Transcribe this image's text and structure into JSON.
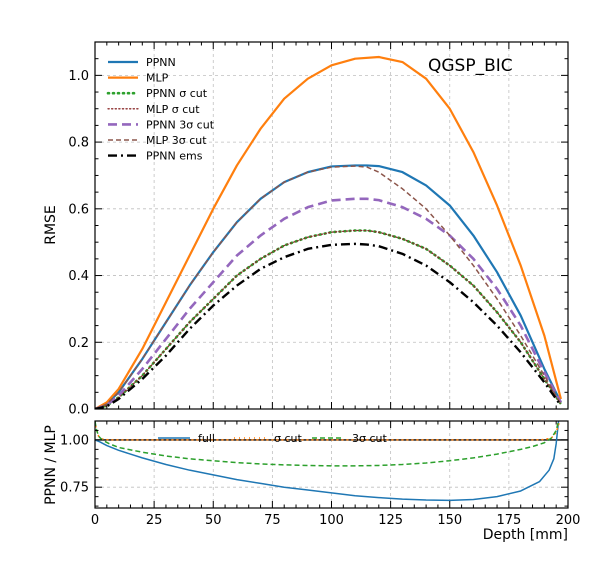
{
  "chart_data": [
    {
      "type": "line",
      "title": "",
      "annotation": "QGSP_BIC",
      "xlabel": "",
      "ylabel": "RMSE",
      "xlim": [
        0,
        200
      ],
      "ylim": [
        0,
        1.1
      ],
      "xticks": [
        0,
        25,
        50,
        75,
        100,
        125,
        150,
        175,
        200
      ],
      "yticks": [
        0.0,
        0.2,
        0.4,
        0.6,
        0.8,
        1.0
      ],
      "ytick_labels": [
        "0.0",
        "0.2",
        "0.4",
        "0.6",
        "0.8",
        "1.0"
      ],
      "grid": true,
      "legend_position": "top-left",
      "series": [
        {
          "name": "PPNN",
          "color": "#1f77b4",
          "dash": "solid",
          "x": [
            0,
            5,
            10,
            20,
            30,
            40,
            50,
            60,
            70,
            80,
            90,
            100,
            110,
            115,
            120,
            130,
            140,
            150,
            160,
            170,
            180,
            190,
            197
          ],
          "y": [
            0.0,
            0.015,
            0.05,
            0.15,
            0.26,
            0.37,
            0.47,
            0.56,
            0.63,
            0.68,
            0.71,
            0.727,
            0.73,
            0.73,
            0.728,
            0.71,
            0.67,
            0.61,
            0.52,
            0.41,
            0.28,
            0.12,
            0.02
          ]
        },
        {
          "name": "MLP",
          "color": "#ff7f0e",
          "dash": "solid",
          "x": [
            0,
            5,
            10,
            20,
            30,
            40,
            50,
            60,
            70,
            80,
            90,
            100,
            110,
            120,
            130,
            140,
            150,
            160,
            170,
            180,
            190,
            197
          ],
          "y": [
            0.0,
            0.02,
            0.06,
            0.18,
            0.32,
            0.46,
            0.6,
            0.73,
            0.84,
            0.93,
            0.99,
            1.03,
            1.05,
            1.055,
            1.04,
            0.99,
            0.9,
            0.77,
            0.61,
            0.43,
            0.22,
            0.03
          ]
        },
        {
          "name": "PPNN σ cut",
          "color": "#2ca02c",
          "dash": "dotted",
          "x": [
            0,
            5,
            10,
            20,
            30,
            40,
            50,
            60,
            70,
            80,
            90,
            100,
            110,
            115,
            120,
            130,
            140,
            150,
            160,
            170,
            180,
            190,
            197
          ],
          "y": [
            0.0,
            0.01,
            0.035,
            0.1,
            0.18,
            0.26,
            0.33,
            0.4,
            0.45,
            0.49,
            0.515,
            0.53,
            0.535,
            0.535,
            0.53,
            0.51,
            0.48,
            0.43,
            0.37,
            0.29,
            0.2,
            0.09,
            0.015
          ]
        },
        {
          "name": "MLP σ cut",
          "color": "#8c2d2d",
          "dash": "finedot",
          "x": [
            0,
            5,
            10,
            20,
            30,
            40,
            50,
            60,
            70,
            80,
            90,
            100,
            110,
            115,
            120,
            130,
            140,
            150,
            160,
            170,
            180,
            190,
            197
          ],
          "y": [
            0.0,
            0.01,
            0.035,
            0.1,
            0.18,
            0.26,
            0.33,
            0.4,
            0.45,
            0.49,
            0.515,
            0.53,
            0.535,
            0.535,
            0.53,
            0.51,
            0.48,
            0.43,
            0.37,
            0.29,
            0.2,
            0.09,
            0.015
          ]
        },
        {
          "name": "PPNN 3σ cut",
          "color": "#9467bd",
          "dash": "longdash",
          "x": [
            0,
            5,
            10,
            20,
            30,
            40,
            50,
            60,
            70,
            80,
            90,
            100,
            110,
            115,
            120,
            130,
            140,
            150,
            160,
            170,
            180,
            190,
            197
          ],
          "y": [
            0.0,
            0.012,
            0.04,
            0.12,
            0.21,
            0.3,
            0.38,
            0.46,
            0.52,
            0.57,
            0.605,
            0.625,
            0.63,
            0.63,
            0.626,
            0.605,
            0.57,
            0.52,
            0.45,
            0.36,
            0.25,
            0.11,
            0.02
          ]
        },
        {
          "name": "MLP 3σ cut",
          "color": "#8c564b",
          "dash": "dashed",
          "x": [
            0,
            5,
            10,
            20,
            30,
            40,
            50,
            60,
            70,
            80,
            90,
            100,
            110,
            115,
            120,
            130,
            140,
            150,
            160,
            170,
            180,
            190,
            197
          ],
          "y": [
            0.0,
            0.015,
            0.05,
            0.15,
            0.26,
            0.37,
            0.47,
            0.56,
            0.63,
            0.68,
            0.71,
            0.725,
            0.728,
            0.725,
            0.71,
            0.66,
            0.6,
            0.52,
            0.43,
            0.33,
            0.22,
            0.1,
            0.015
          ]
        },
        {
          "name": "PPNN ems",
          "color": "#000000",
          "dash": "dashdot",
          "x": [
            0,
            5,
            10,
            20,
            30,
            40,
            50,
            60,
            70,
            80,
            90,
            100,
            110,
            115,
            120,
            130,
            140,
            150,
            160,
            170,
            180,
            190,
            197
          ],
          "y": [
            0.0,
            0.008,
            0.03,
            0.09,
            0.16,
            0.24,
            0.31,
            0.37,
            0.42,
            0.455,
            0.48,
            0.492,
            0.495,
            0.493,
            0.488,
            0.465,
            0.43,
            0.38,
            0.32,
            0.25,
            0.17,
            0.08,
            0.01
          ]
        }
      ]
    },
    {
      "type": "line",
      "title": "",
      "xlabel": "Depth [mm]",
      "ylabel": "PPNN / MLP",
      "xlim": [
        0,
        200
      ],
      "ylim": [
        0.64,
        1.1
      ],
      "xticks": [
        0,
        25,
        50,
        75,
        100,
        125,
        150,
        175,
        200
      ],
      "yticks": [
        0.75,
        1.0
      ],
      "ytick_labels": [
        "0.75",
        "1.00"
      ],
      "reference_line": 1.0,
      "grid": true,
      "legend_position": "top",
      "series": [
        {
          "name": "full",
          "color": "#1f77b4",
          "dash": "solid",
          "x": [
            0,
            2,
            5,
            10,
            20,
            30,
            40,
            50,
            60,
            70,
            80,
            90,
            100,
            110,
            120,
            130,
            140,
            150,
            160,
            170,
            180,
            188,
            192,
            194,
            195,
            196
          ],
          "y": [
            1.0,
            0.99,
            0.97,
            0.945,
            0.905,
            0.87,
            0.84,
            0.815,
            0.79,
            0.77,
            0.75,
            0.735,
            0.72,
            0.705,
            0.695,
            0.687,
            0.682,
            0.68,
            0.685,
            0.7,
            0.73,
            0.78,
            0.84,
            0.9,
            0.98,
            1.1
          ]
        },
        {
          "name": "σ cut",
          "color": "#ff7f0e",
          "dash": "dotted",
          "x": [
            0,
            0.5,
            1.5,
            3,
            6,
            10,
            30,
            60,
            100,
            140,
            170,
            185,
            190,
            193,
            195,
            196.5
          ],
          "y": [
            1.1,
            1.06,
            1.02,
            1.005,
            1.0,
            1.0,
            1.0,
            1.0,
            1.0,
            1.0,
            1.0,
            1.0,
            1.002,
            1.01,
            1.04,
            1.1
          ]
        },
        {
          "name": "3σ cut",
          "color": "#2ca02c",
          "dash": "dashed",
          "x": [
            0,
            0.5,
            1.5,
            3,
            6,
            10,
            20,
            30,
            40,
            50,
            60,
            70,
            80,
            90,
            100,
            110,
            120,
            130,
            140,
            150,
            160,
            170,
            180,
            185,
            190,
            193,
            195,
            196
          ],
          "y": [
            1.1,
            1.06,
            1.02,
            1.0,
            0.98,
            0.96,
            0.935,
            0.915,
            0.9,
            0.89,
            0.88,
            0.873,
            0.868,
            0.865,
            0.863,
            0.863,
            0.865,
            0.87,
            0.878,
            0.89,
            0.905,
            0.925,
            0.95,
            0.965,
            0.985,
            1.01,
            1.05,
            1.1
          ]
        }
      ]
    }
  ]
}
